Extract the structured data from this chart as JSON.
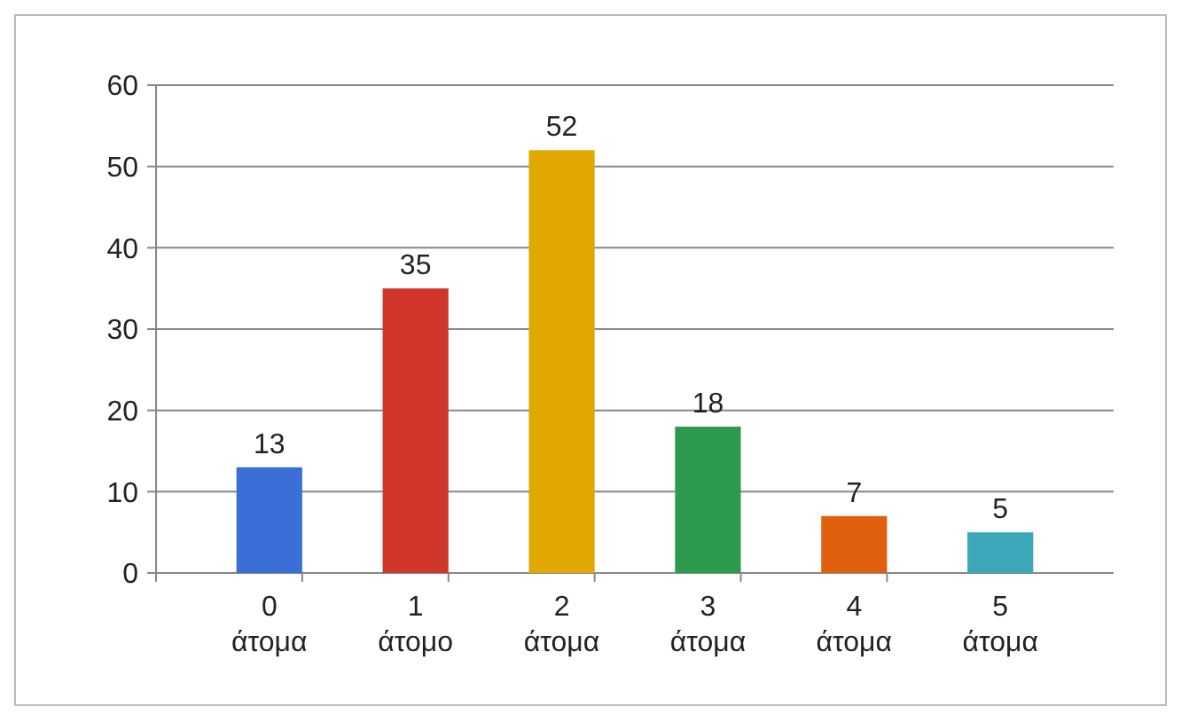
{
  "chart_data": {
    "type": "bar",
    "categories": [
      "0 άτομα",
      "1 άτομο",
      "2 άτομα",
      "3 άτομα",
      "4 άτομα",
      "5 άτομα"
    ],
    "values": [
      13,
      35,
      52,
      18,
      7,
      5
    ],
    "colors": [
      "#3a6fd8",
      "#d0362c",
      "#e0a800",
      "#2e9a4e",
      "#e06010",
      "#3aa8b8"
    ],
    "ylim": [
      0,
      60
    ],
    "yticks": [
      0,
      10,
      20,
      30,
      40,
      50,
      60
    ],
    "grid": "y",
    "data_labels": true
  }
}
